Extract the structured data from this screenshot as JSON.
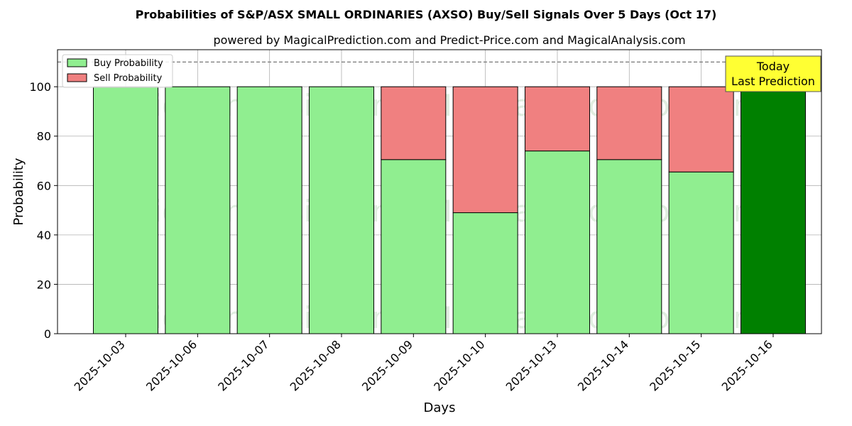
{
  "chart_data": {
    "type": "bar",
    "title": "Probabilities of S&P/ASX SMALL ORDINARIES (AXSO) Buy/Sell Signals Over 5 Days (Oct 17)",
    "subtitle": "powered by MagicalPrediction.com and Predict-Price.com and MagicalAnalysis.com",
    "xlabel": "Days",
    "ylabel": "Probability",
    "ylim": [
      0,
      115
    ],
    "yticks": [
      "0",
      "20",
      "40",
      "60",
      "80",
      "100"
    ],
    "reference_line": 110,
    "categories": [
      "2025-10-03",
      "2025-10-06",
      "2025-10-07",
      "2025-10-08",
      "2025-10-09",
      "2025-10-10",
      "2025-10-13",
      "2025-10-14",
      "2025-10-15",
      "2025-10-16"
    ],
    "series": [
      {
        "name": "Buy Probability",
        "values": [
          100,
          100,
          100,
          100,
          70.5,
          49,
          74,
          70.5,
          65.5,
          100
        ]
      },
      {
        "name": "Sell Probability",
        "values": [
          0,
          0,
          0,
          0,
          29.5,
          51,
          26,
          29.5,
          34.5,
          0
        ]
      }
    ],
    "highlight_index": 9,
    "legend_position": "top-left",
    "grid": true,
    "annotation": {
      "line1": "Today",
      "line2": "Last Prediction"
    },
    "watermarks": [
      "MagicalAnalysis.com",
      "MagicalPrediction.com"
    ],
    "colors": {
      "buy": "#90ee90",
      "sell": "#f08080",
      "highlight": "#008000",
      "annotation_bg": "#ffff33"
    }
  }
}
